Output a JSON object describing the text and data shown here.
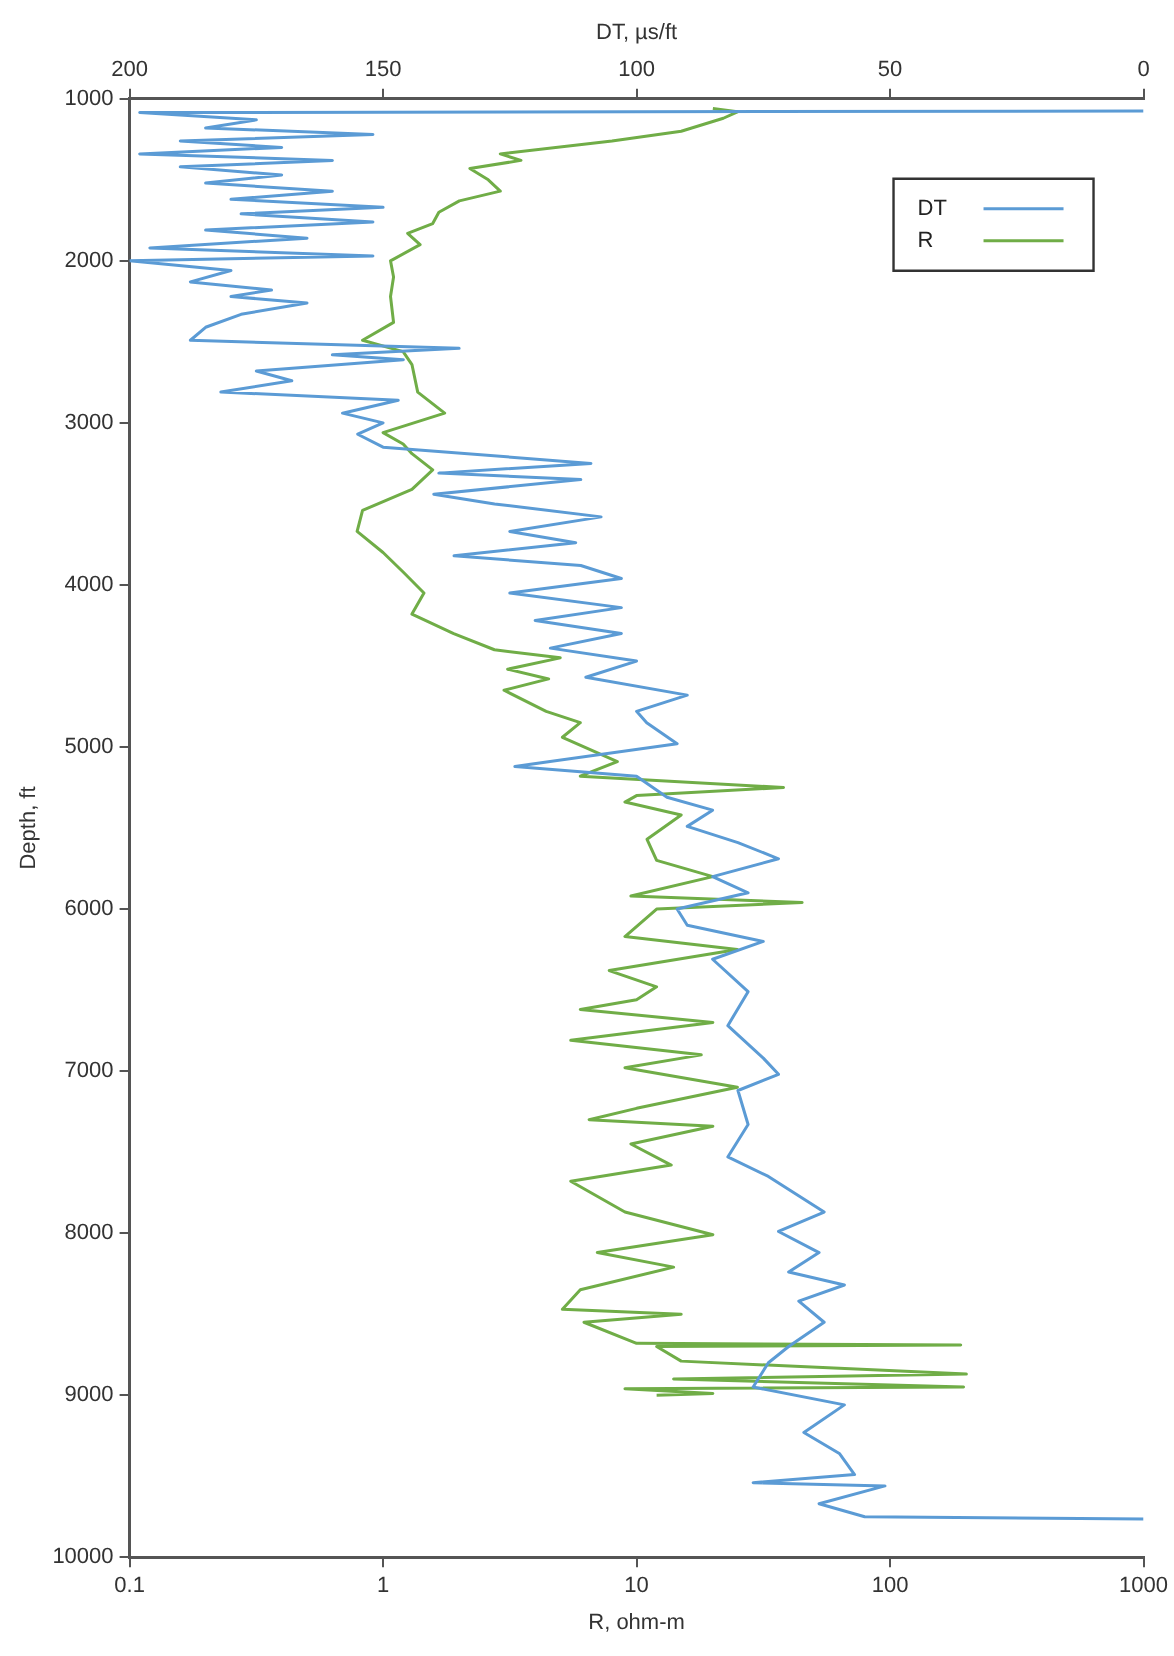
{
  "chart_data": {
    "type": "line",
    "xlabel": "R, ohm-m",
    "x2label": "DT, µs/ft",
    "ylabel": "Depth, ft",
    "xlim": [
      0.1,
      1000
    ],
    "xticks": [
      0.1,
      1,
      10,
      100,
      1000
    ],
    "log": "x",
    "x2lim": [
      200,
      0
    ],
    "x2ticks": [
      200,
      150,
      100,
      50,
      0
    ],
    "ylim": [
      10000,
      1000
    ],
    "yticks": [
      1000,
      2000,
      3000,
      4000,
      5000,
      6000,
      7000,
      8000,
      9000,
      10000
    ],
    "legend": "top right",
    "series": [
      {
        "name": "DT",
        "color": "#5b9bd5",
        "axis": "x2",
        "x": [
          0,
          198,
          175,
          185,
          152,
          190,
          170,
          198,
          160,
          190,
          170,
          185,
          160,
          180,
          150,
          178,
          152,
          185,
          165,
          196,
          152,
          200,
          180,
          188,
          172,
          180,
          165,
          178,
          185,
          188,
          135,
          160,
          146,
          175,
          168,
          182,
          147,
          158,
          150,
          155,
          150,
          109,
          139,
          111,
          140,
          128,
          107,
          125,
          112,
          136,
          111,
          103,
          125,
          103,
          120,
          103,
          117,
          100,
          110,
          90,
          100,
          98,
          92,
          124,
          100,
          94,
          85,
          90,
          80,
          72,
          85,
          78,
          92,
          90,
          75,
          85,
          78,
          82,
          75,
          72,
          80,
          78,
          82,
          74,
          63,
          72,
          64,
          70,
          59,
          68,
          63,
          70,
          74,
          77,
          59,
          67,
          60,
          57,
          77,
          51,
          64,
          55,
          0
        ],
        "values": [
          1075,
          1085,
          1130,
          1180,
          1220,
          1260,
          1300,
          1340,
          1380,
          1420,
          1470,
          1520,
          1570,
          1620,
          1670,
          1710,
          1760,
          1810,
          1860,
          1920,
          1970,
          2000,
          2060,
          2130,
          2180,
          2220,
          2260,
          2330,
          2410,
          2490,
          2540,
          2580,
          2610,
          2680,
          2740,
          2810,
          2860,
          2940,
          3000,
          3070,
          3150,
          3250,
          3310,
          3350,
          3440,
          3500,
          3580,
          3670,
          3740,
          3820,
          3880,
          3960,
          4050,
          4140,
          4220,
          4300,
          4390,
          4470,
          4570,
          4680,
          4780,
          4850,
          4980,
          5120,
          5180,
          5310,
          5390,
          5490,
          5590,
          5690,
          5800,
          5900,
          6000,
          6100,
          6200,
          6310,
          6510,
          6720,
          6920,
          7020,
          7120,
          7330,
          7530,
          7650,
          7870,
          7990,
          8120,
          8240,
          8320,
          8420,
          8550,
          8700,
          8800,
          8950,
          9060,
          9230,
          9360,
          9490,
          9540,
          9560,
          9670,
          9750,
          9765
        ]
      },
      {
        "name": "R",
        "color": "#70ad47",
        "x": [
          20,
          25,
          22,
          15,
          8,
          2.9,
          3.5,
          2.2,
          2.6,
          2.9,
          2,
          1.66,
          1.57,
          1.25,
          1.4,
          1.07,
          1.1,
          1.07,
          1.1,
          0.83,
          1.2,
          1.3,
          1.37,
          1.75,
          1,
          1.2,
          1.3,
          1.57,
          1.3,
          0.83,
          0.79,
          1,
          1.2,
          1.45,
          1.3,
          1.9,
          2.75,
          5,
          3.1,
          4.5,
          3,
          4.4,
          6,
          5.1,
          8.4,
          6,
          38,
          10,
          9,
          15,
          11,
          12,
          20,
          9.5,
          45,
          12,
          9,
          25,
          7.8,
          12,
          10,
          6,
          20,
          5.5,
          18,
          9,
          25,
          10,
          6.5,
          20,
          9.5,
          13.7,
          5.5,
          9,
          20,
          7,
          14,
          6,
          5.1,
          15,
          6.2,
          10,
          190,
          12,
          15,
          200,
          14,
          195,
          9,
          20,
          12
        ],
        "values": [
          1060,
          1080,
          1120,
          1200,
          1260,
          1340,
          1380,
          1430,
          1500,
          1570,
          1630,
          1700,
          1770,
          1830,
          1900,
          2000,
          2100,
          2220,
          2380,
          2490,
          2560,
          2640,
          2810,
          2940,
          3060,
          3130,
          3190,
          3290,
          3410,
          3540,
          3670,
          3800,
          3920,
          4050,
          4180,
          4300,
          4400,
          4450,
          4520,
          4580,
          4650,
          4780,
          4850,
          4940,
          5090,
          5180,
          5250,
          5300,
          5340,
          5420,
          5570,
          5700,
          5800,
          5920,
          5960,
          6000,
          6170,
          6250,
          6380,
          6480,
          6560,
          6620,
          6700,
          6810,
          6900,
          6980,
          7100,
          7230,
          7300,
          7340,
          7450,
          7580,
          7680,
          7870,
          8010,
          8120,
          8210,
          8350,
          8470,
          8500,
          8550,
          8680,
          8690,
          8700,
          8790,
          8870,
          8900,
          8950,
          8960,
          8990,
          9000
        ]
      }
    ]
  }
}
